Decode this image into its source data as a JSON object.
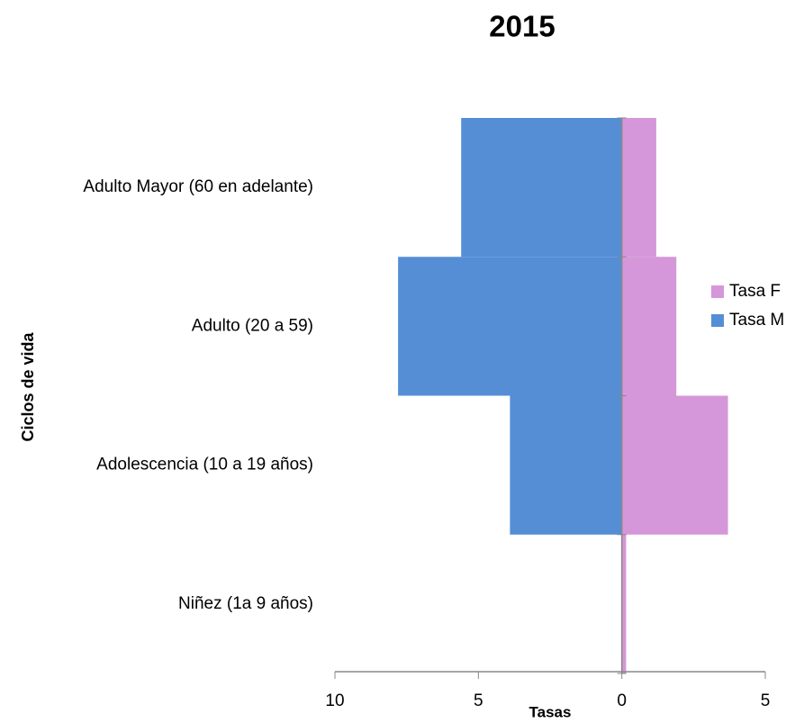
{
  "chart_data": {
    "type": "pyramid",
    "title": "2015",
    "x_label": "Tasas",
    "y_label": "Ciclos de vida",
    "categories": [
      "Adulto Mayor (60 en adelante)",
      "Adulto  (20 a 59)",
      "Adolescencia (10 a 19 años)",
      "Niñez (1a 9 años)"
    ],
    "series": [
      {
        "name": "Tasa F",
        "color": "#d597d9",
        "values": [
          1.2,
          1.9,
          3.7,
          0.15
        ]
      },
      {
        "name": "Tasa M",
        "color": "#558ed5",
        "values": [
          -5.6,
          -7.8,
          -3.9,
          0
        ]
      }
    ],
    "xlim": [
      -10,
      5
    ],
    "xticks": [
      {
        "value": -10,
        "label": "10"
      },
      {
        "value": -5,
        "label": "5"
      },
      0,
      5
    ],
    "legend": "right"
  }
}
